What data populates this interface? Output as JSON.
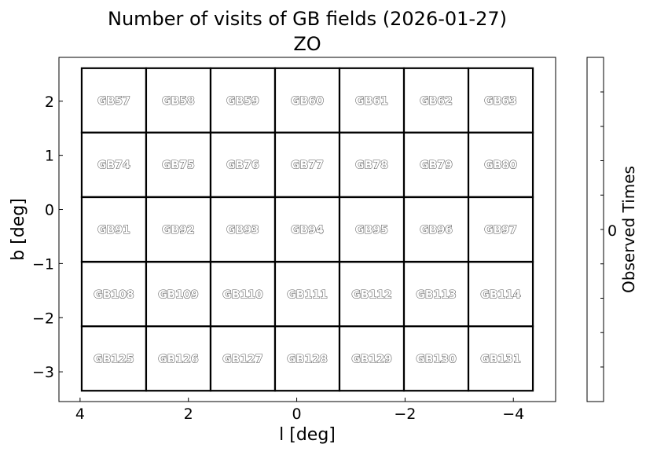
{
  "chart_data": {
    "type": "heatmap",
    "title": "Number of visits of GB fields (2026-01-27)",
    "subtitle": "ZO",
    "xlabel": "l [deg]",
    "ylabel": "b [deg]",
    "xlim": [
      4.39,
      -4.78
    ],
    "ylim": [
      -3.55,
      2.81
    ],
    "xticks": [
      4,
      2,
      0,
      -2,
      -4
    ],
    "xtick_labels": [
      "4",
      "2",
      "0",
      "−2",
      "−4"
    ],
    "yticks": [
      2,
      1,
      0,
      -1,
      -2,
      -3
    ],
    "ytick_labels": [
      "2",
      "1",
      "0",
      "−1",
      "−2",
      "−3"
    ],
    "grid": false,
    "field_size_deg": [
      1.19,
      1.19
    ],
    "field_columns_l": [
      3.375,
      2.185,
      0.995,
      -0.195,
      -1.385,
      -2.575,
      -3.765
    ],
    "field_rows_b": [
      2.015,
      0.825,
      -0.37,
      -1.565,
      -2.755
    ],
    "fields": [
      [
        "GB57",
        "GB58",
        "GB59",
        "GB60",
        "GB61",
        "GB62",
        "GB63"
      ],
      [
        "GB74",
        "GB75",
        "GB76",
        "GB77",
        "GB78",
        "GB79",
        "GB80"
      ],
      [
        "GB91",
        "GB92",
        "GB93",
        "GB94",
        "GB95",
        "GB96",
        "GB97"
      ],
      [
        "GB108",
        "GB109",
        "GB110",
        "GB111",
        "GB112",
        "GB113",
        "GB114"
      ],
      [
        "GB125",
        "GB126",
        "GB127",
        "GB128",
        "GB129",
        "GB130",
        "GB131"
      ]
    ],
    "observed_times": [
      [
        0,
        0,
        0,
        0,
        0,
        0,
        0
      ],
      [
        0,
        0,
        0,
        0,
        0,
        0,
        0
      ],
      [
        0,
        0,
        0,
        0,
        0,
        0,
        0
      ],
      [
        0,
        0,
        0,
        0,
        0,
        0,
        0
      ],
      [
        0,
        0,
        0,
        0,
        0,
        0,
        0
      ]
    ],
    "colorbar": {
      "label": "Observed Times",
      "tick_labels": [
        "0"
      ],
      "minor_tick_count": 9
    },
    "colors": {
      "cell_fill": "#ffffff",
      "cell_edge": "#000000"
    }
  }
}
